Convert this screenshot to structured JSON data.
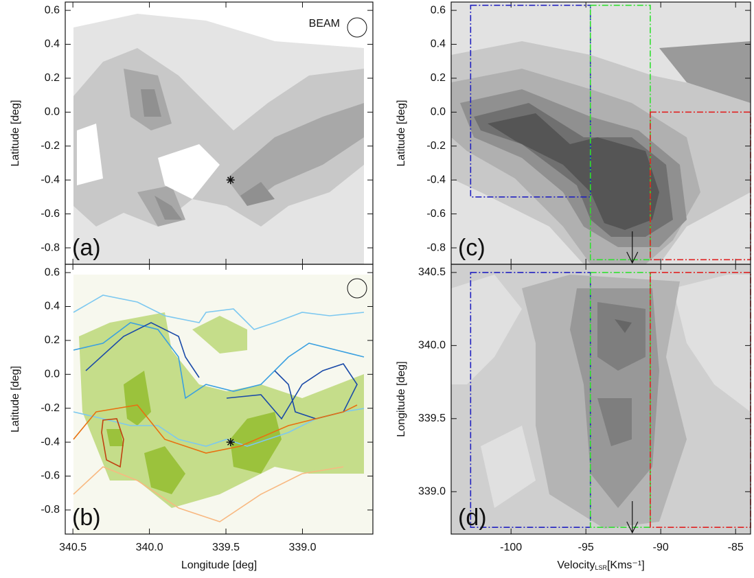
{
  "chart_data": [
    {
      "type": "contour",
      "panel": "(a)",
      "annotation": "BEAM",
      "ylabel": "Latitude [deg]",
      "xlim": [
        340.55,
        338.54
      ],
      "ylim": [
        -0.897,
        0.649
      ],
      "yticks": [
        0.6,
        0.4,
        0.2,
        {
          "value": 0,
          "label": "0.0"
        },
        -0.2,
        -0.4,
        -0.6,
        -0.8
      ],
      "marker": {
        "x": 339.47,
        "y": -0.4
      }
    },
    {
      "type": "contour",
      "panel": "(b)",
      "ylabel": "Latitude [deg]",
      "xlabel": "Longitude [deg]",
      "xlim": [
        340.55,
        338.54
      ],
      "ylim": [
        -0.942,
        0.649
      ],
      "xticks": [
        340.5,
        {
          "value": 340,
          "label": "340.0"
        },
        339.5,
        {
          "value": 339,
          "label": "339.0"
        }
      ],
      "yticks": [
        0.6,
        0.4,
        0.2,
        {
          "value": 0,
          "label": "0.0"
        },
        -0.2,
        -0.4,
        -0.6,
        -0.8
      ],
      "marker": {
        "x": 339.47,
        "y": -0.4
      }
    },
    {
      "type": "contour",
      "panel": "(c)",
      "ylabel": "Latitude [deg]",
      "xlim": [
        -104,
        -84
      ],
      "ylim": [
        -0.897,
        0.649
      ],
      "yticks": [
        0.6,
        0.4,
        0.2,
        {
          "value": 0,
          "label": "0.0"
        },
        -0.2,
        -0.4,
        -0.6,
        -0.8
      ],
      "arrow": -91.9,
      "regions": [
        {
          "color": "#2020c0",
          "vlim": [
            -102.7,
            -94.7
          ],
          "ylim": [
            -0.5,
            0.63
          ]
        },
        {
          "color": "#30e030",
          "vlim": [
            -94.7,
            -90.7
          ],
          "ylim": [
            -0.87,
            0.63
          ]
        },
        {
          "color": "#e02020",
          "vlim": [
            -90.7,
            -84
          ],
          "ylim": [
            -0.87,
            0
          ]
        }
      ]
    },
    {
      "type": "contour",
      "panel": "(d)",
      "ylabel": "Longitude [deg]",
      "xlabel": "Velocity",
      "xlabel_sub": "LSR",
      "xlabel_unit": "[Kms⁻¹]",
      "xlim": [
        -104,
        -84
      ],
      "ylim": [
        338.71,
        340.556
      ],
      "xticks": [
        -100,
        -95,
        -90,
        -85
      ],
      "yticks": [
        340.5,
        {
          "value": 340,
          "label": "340.0"
        },
        339.5,
        {
          "value": 339,
          "label": "339.0"
        }
      ],
      "arrow": -91.9,
      "regions": [
        {
          "color": "#2020c0",
          "vlim": [
            -102.7,
            -94.7
          ],
          "ylim": [
            338.756,
            340.5
          ]
        },
        {
          "color": "#30e030",
          "vlim": [
            -94.7,
            -90.7
          ],
          "ylim": [
            338.756,
            340.5
          ]
        },
        {
          "color": "#e02020",
          "vlim": [
            -90.7,
            -84
          ],
          "ylim": [
            338.756,
            340.5
          ]
        }
      ]
    }
  ]
}
